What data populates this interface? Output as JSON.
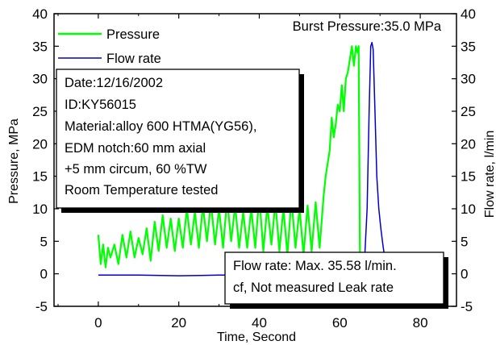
{
  "chart_data": {
    "type": "line",
    "xlabel": "Time, Second",
    "ylabel_left": "Pressure, MPa",
    "ylabel_right": "Flow rate, l/min",
    "xlim": [
      -11,
      89
    ],
    "ylim_left": [
      -5,
      40
    ],
    "ylim_right": [
      -5,
      40
    ],
    "xticks": [
      0,
      20,
      40,
      60,
      80
    ],
    "yticks_left": [
      -5,
      0,
      5,
      10,
      15,
      20,
      25,
      30,
      35,
      40
    ],
    "yticks_right": [
      -5,
      0,
      5,
      10,
      15,
      20,
      25,
      30,
      35,
      40
    ],
    "grid": false,
    "legend_position": "top-left",
    "annotation_top_right": "Burst Pressure:35.0 MPa",
    "info_box_lines": [
      "Date:12/16/2002",
      "ID:KY56015",
      "Material:alloy 600 HTMA(YG56),",
      "EDM notch:60 mm axial",
      "+5 mm circum, 60 %TW",
      "Room Temperature tested"
    ],
    "note_box_lines": [
      "Flow rate: Max. 35.58 l/min.",
      "cf, Not measured Leak rate"
    ],
    "series": [
      {
        "name": "Pressure",
        "color": "#00ff00",
        "axis": "left",
        "x": [
          0,
          0.6,
          1.2,
          1.8,
          2.4,
          3,
          4,
          5,
          6,
          7,
          8,
          9,
          10,
          11,
          12,
          13,
          14,
          15,
          16,
          17,
          18,
          19,
          20,
          21,
          22,
          23,
          24,
          25,
          26,
          27,
          28,
          29,
          30,
          31,
          32,
          33,
          34,
          35,
          36,
          37,
          38,
          39,
          40,
          41,
          42,
          43,
          44,
          45,
          46,
          47,
          48,
          49,
          50,
          51,
          52,
          53,
          54,
          55,
          56,
          56.5,
          57,
          57.5,
          58,
          58.5,
          59,
          59.5,
          60,
          60.5,
          61,
          61.5,
          62,
          62.5,
          63,
          63.5,
          64,
          64.4,
          64.7,
          65,
          65.2
        ],
        "y": [
          6,
          1.5,
          4.5,
          1,
          4,
          2.5,
          4.5,
          1.5,
          6,
          2.5,
          6.5,
          2.5,
          5.5,
          3,
          7,
          2,
          8,
          3.5,
          9,
          4,
          8.5,
          3.5,
          8.5,
          4,
          10,
          4.5,
          9.5,
          4,
          10.5,
          5,
          11,
          4.5,
          10,
          4,
          11.5,
          5,
          10.5,
          4,
          9.5,
          4,
          10,
          4,
          12,
          3.5,
          10.5,
          4.5,
          11,
          3.5,
          10,
          3,
          11.5,
          4,
          10,
          3,
          10.5,
          3.5,
          11,
          4,
          12,
          15,
          17,
          19,
          24,
          21,
          23,
          26,
          25,
          29,
          25,
          30,
          31,
          33,
          35,
          32,
          35,
          34,
          35,
          4.5,
          -5
        ]
      },
      {
        "name": "Flow rate",
        "color": "#0000cc",
        "axis": "right",
        "x": [
          0,
          10,
          20,
          30,
          40,
          50,
          60,
          64,
          65,
          66,
          66.8,
          67.3,
          67.7,
          68,
          68.3,
          68.7,
          69.2,
          69.7,
          70.2,
          70.7,
          71
        ],
        "y": [
          -0.2,
          -0.2,
          -0.3,
          -0.2,
          -0.2,
          -0.3,
          -0.2,
          -0.3,
          -0.5,
          0,
          10,
          25,
          35,
          35.58,
          34.5,
          26,
          15,
          10,
          7,
          4.5,
          3.2
        ]
      }
    ]
  }
}
